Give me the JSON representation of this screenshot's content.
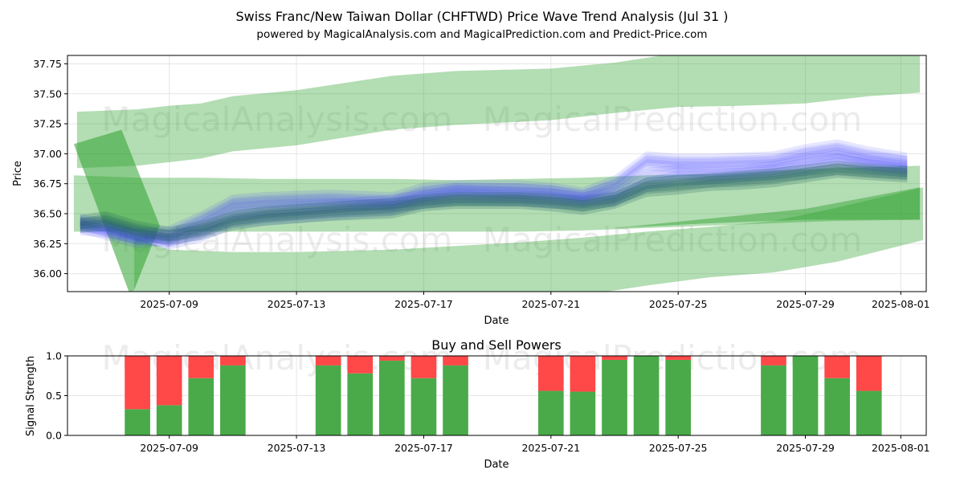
{
  "chart_data": [
    {
      "type": "area",
      "title": "Swiss Franc/New Taiwan Dollar (CHFTWD) Price Wave Trend Analysis (Jul 31 )",
      "subtitle": "powered by MagicalAnalysis.com and MagicalPrediction.com and Predict-Price.com",
      "xlabel": "Date",
      "ylabel": "Price",
      "ylim": [
        35.85,
        37.82
      ],
      "xlim": [
        -2.2,
        24.8
      ],
      "x_ticks": [
        "2025-07-09",
        "2025-07-13",
        "2025-07-17",
        "2025-07-21",
        "2025-07-25",
        "2025-07-29",
        "2025-08-01"
      ],
      "x_tick_days": [
        1,
        5,
        9,
        13,
        17,
        21,
        24
      ],
      "y_ticks": [
        36.0,
        36.25,
        36.5,
        36.75,
        37.0,
        37.25,
        37.5,
        37.75
      ],
      "grid": true,
      "colors": {
        "green": "#2ca02c",
        "blue": "#4040ff",
        "teal": "#206060"
      },
      "bands": [
        {
          "name": "upper-green-band",
          "days": [
            -1.9,
            0,
            1,
            2,
            3,
            5,
            8,
            10,
            13,
            15,
            17,
            19,
            21,
            22,
            23,
            24.6
          ],
          "upper": [
            37.35,
            37.37,
            37.4,
            37.42,
            37.48,
            37.53,
            37.65,
            37.69,
            37.71,
            37.76,
            37.84,
            37.85,
            37.86,
            37.88,
            37.9,
            37.93
          ],
          "lower": [
            36.88,
            36.9,
            36.93,
            36.96,
            37.02,
            37.07,
            37.2,
            37.24,
            37.28,
            37.34,
            37.39,
            37.4,
            37.42,
            37.45,
            37.48,
            37.51
          ]
        },
        {
          "name": "middle-green-band",
          "days": [
            -2.0,
            0,
            2,
            4,
            6,
            8,
            10,
            12,
            14,
            16,
            18,
            20,
            22,
            24.6
          ],
          "upper": [
            36.82,
            36.8,
            36.8,
            36.79,
            36.79,
            36.79,
            36.78,
            36.79,
            36.8,
            36.82,
            36.83,
            36.86,
            36.88,
            36.9
          ],
          "lower": [
            36.35,
            36.35,
            36.35,
            36.35,
            36.35,
            36.35,
            36.35,
            36.35,
            36.36,
            36.38,
            36.4,
            36.42,
            36.44,
            36.45
          ]
        },
        {
          "name": "lower-green-band",
          "days": [
            -0.1,
            1,
            3,
            5,
            8,
            10,
            12,
            14,
            16,
            18,
            20,
            22,
            24.7
          ],
          "upper": [
            36.3,
            36.2,
            36.18,
            36.18,
            36.2,
            36.23,
            36.26,
            36.3,
            36.35,
            36.39,
            36.44,
            36.55,
            36.72
          ],
          "lower": [
            35.6,
            35.55,
            35.55,
            35.57,
            35.6,
            35.65,
            35.72,
            35.82,
            35.9,
            35.97,
            36.01,
            36.1,
            36.28
          ]
        },
        {
          "name": "darker-green-band-right",
          "days": [
            15,
            18,
            21,
            23,
            24.6
          ],
          "upper": [
            36.38,
            36.46,
            36.54,
            36.64,
            36.72
          ],
          "lower": [
            36.38,
            36.42,
            36.45,
            36.45,
            36.45
          ]
        }
      ],
      "wedge": {
        "name": "green-wedge-left",
        "days": [
          -2.0,
          -0.5,
          0.7,
          -0.2
        ],
        "prices": [
          37.08,
          37.2,
          36.4,
          35.8
        ]
      },
      "series": [
        {
          "name": "blue-wave-1",
          "days": [
            -1.8,
            -1,
            0,
            1,
            2,
            3,
            4,
            6,
            8,
            9,
            10,
            12,
            13,
            14,
            15,
            16,
            17,
            18,
            19,
            20,
            21,
            22,
            23,
            24.2
          ],
          "values": [
            36.42,
            36.38,
            36.3,
            36.28,
            36.36,
            36.5,
            36.52,
            36.56,
            36.6,
            36.64,
            36.68,
            36.66,
            36.65,
            36.62,
            36.66,
            36.82,
            36.85,
            36.84,
            36.85,
            36.88,
            36.93,
            36.97,
            36.92,
            36.88
          ]
        },
        {
          "name": "blue-wave-2",
          "days": [
            -1.8,
            -1,
            0,
            1,
            2,
            3,
            4,
            6,
            8,
            9,
            10,
            12,
            13,
            14,
            15,
            16,
            17,
            18,
            19,
            20,
            21,
            22,
            23,
            24.2
          ],
          "values": [
            36.4,
            36.34,
            36.27,
            36.3,
            36.42,
            36.56,
            36.58,
            36.6,
            36.58,
            36.66,
            36.7,
            36.69,
            36.68,
            36.64,
            36.72,
            36.92,
            36.9,
            36.9,
            36.91,
            36.92,
            36.98,
            37.02,
            36.96,
            36.92
          ]
        },
        {
          "name": "blue-wave-3",
          "days": [
            -1.8,
            -1,
            0,
            1,
            2,
            3,
            4,
            6,
            8,
            9,
            10,
            12,
            13,
            14,
            15,
            16,
            17,
            18,
            19,
            20,
            21,
            22,
            23,
            24.2
          ],
          "values": [
            36.44,
            36.4,
            36.33,
            36.26,
            36.32,
            36.44,
            36.46,
            36.5,
            36.54,
            36.6,
            36.63,
            36.62,
            36.6,
            36.6,
            36.62,
            36.74,
            36.8,
            36.8,
            36.82,
            36.84,
            36.88,
            36.94,
            36.9,
            36.86
          ]
        },
        {
          "name": "blue-wave-4",
          "days": [
            -1.8,
            -1,
            0,
            1,
            2,
            3,
            4,
            6,
            8,
            9,
            10,
            12,
            13,
            14,
            15,
            16,
            17,
            18,
            19,
            20,
            21,
            22,
            23,
            24.2
          ],
          "values": [
            36.38,
            36.36,
            36.31,
            36.34,
            36.46,
            36.6,
            36.62,
            36.64,
            36.62,
            36.7,
            36.72,
            36.72,
            36.7,
            36.66,
            36.76,
            36.96,
            36.94,
            36.94,
            36.95,
            36.96,
            37.02,
            37.06,
            37.0,
            36.95
          ]
        },
        {
          "name": "teal-wave-1",
          "days": [
            -1.8,
            -1,
            0,
            1,
            2,
            3,
            4,
            6,
            8,
            9,
            10,
            12,
            13,
            14,
            15,
            16,
            17,
            18,
            19,
            20,
            21,
            22,
            23,
            24.2
          ],
          "values": [
            36.43,
            36.46,
            36.38,
            36.33,
            36.38,
            36.46,
            36.5,
            36.54,
            36.57,
            36.6,
            36.62,
            36.62,
            36.61,
            36.58,
            36.62,
            36.74,
            36.76,
            36.78,
            36.8,
            36.82,
            36.85,
            36.88,
            36.86,
            36.84
          ]
        },
        {
          "name": "teal-wave-2",
          "days": [
            -1.8,
            -1,
            0,
            1,
            2,
            3,
            4,
            6,
            8,
            9,
            10,
            12,
            13,
            14,
            15,
            16,
            17,
            18,
            19,
            20,
            21,
            22,
            23,
            24.2
          ],
          "values": [
            36.4,
            36.42,
            36.34,
            36.3,
            36.34,
            36.42,
            36.46,
            36.5,
            36.52,
            36.58,
            36.6,
            36.6,
            36.58,
            36.55,
            36.6,
            36.7,
            36.72,
            36.75,
            36.76,
            36.78,
            36.82,
            36.86,
            36.84,
            36.82
          ]
        }
      ]
    },
    {
      "type": "bar",
      "title": "Buy and Sell Powers",
      "xlabel": "Date",
      "ylabel": "Signal Strength",
      "ylim": [
        0.0,
        1.0
      ],
      "xlim": [
        -2.2,
        24.8
      ],
      "x_ticks": [
        "2025-07-09",
        "2025-07-13",
        "2025-07-17",
        "2025-07-21",
        "2025-07-25",
        "2025-07-29",
        "2025-08-01"
      ],
      "x_tick_days": [
        1,
        5,
        9,
        13,
        17,
        21,
        24
      ],
      "y_ticks": [
        "0.0",
        "0.5",
        "1.0"
      ],
      "colors": {
        "buy": "#4aaa4a",
        "sell": "#ff4848"
      },
      "categories": [
        "2025-07-08",
        "2025-07-09",
        "2025-07-10",
        "2025-07-11",
        "2025-07-14",
        "2025-07-15",
        "2025-07-16",
        "2025-07-17",
        "2025-07-18",
        "2025-07-21",
        "2025-07-22",
        "2025-07-23",
        "2025-07-24",
        "2025-07-25",
        "2025-07-28",
        "2025-07-29",
        "2025-07-30",
        "2025-07-31"
      ],
      "days": [
        0,
        1,
        2,
        3,
        6,
        7,
        8,
        9,
        10,
        13,
        14,
        15,
        16,
        17,
        20,
        21,
        22,
        23
      ],
      "series": [
        {
          "name": "Buy",
          "values": [
            0.33,
            0.38,
            0.72,
            0.88,
            0.88,
            0.78,
            0.94,
            0.72,
            0.88,
            0.56,
            0.55,
            0.95,
            1.0,
            0.95,
            0.88,
            1.0,
            0.72,
            0.56
          ]
        },
        {
          "name": "Sell",
          "values": [
            0.67,
            0.62,
            0.28,
            0.12,
            0.12,
            0.22,
            0.06,
            0.28,
            0.12,
            0.44,
            0.45,
            0.05,
            0.0,
            0.05,
            0.12,
            0.0,
            0.28,
            0.44
          ]
        }
      ]
    }
  ],
  "watermarks": {
    "analysis": "MagicalAnalysis.com",
    "prediction": "MagicalPrediction.com"
  }
}
